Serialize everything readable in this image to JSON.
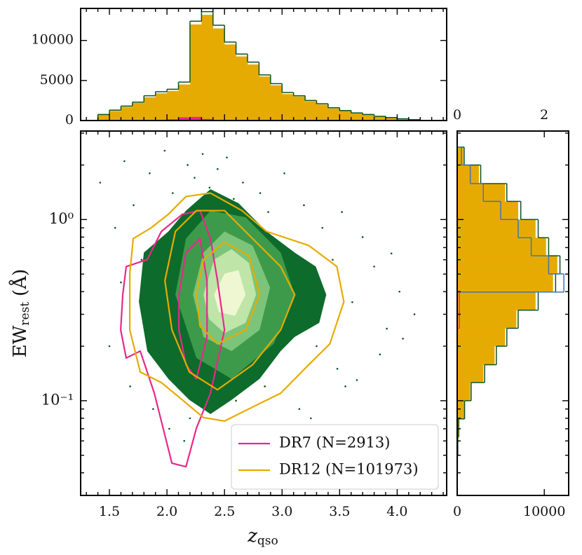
{
  "chart_data": [
    {
      "type": "scatter",
      "xlabel": "z",
      "xlabel_sub": "qso",
      "ylabel": "EW",
      "ylabel_sub": "rest",
      "ylabel_unit": "(Å)",
      "xlim": [
        1.25,
        4.43
      ],
      "ylim": [
        0.03,
        3.08
      ],
      "ylog": true,
      "xticks": [
        1.5,
        {
          "value": 2,
          "label": "2.0"
        },
        2.5,
        {
          "value": 3,
          "label": "3.0"
        },
        3.5,
        {
          "value": 4,
          "label": "4.0"
        }
      ],
      "xminor": [
        1.3,
        1.4,
        1.6,
        1.7,
        1.8,
        1.9,
        2.1,
        2.2,
        2.3,
        2.4,
        2.6,
        2.7,
        2.8,
        2.9,
        3.1,
        3.2,
        3.3,
        3.4,
        3.6,
        3.7,
        3.8,
        3.9,
        4.1,
        4.2,
        4.3,
        4.4
      ],
      "yticks": [
        {
          "value": 0.1,
          "label": "10⁻¹"
        },
        {
          "value": 1,
          "label": "10⁰"
        }
      ],
      "yminor": [
        0.04,
        0.05,
        0.06,
        0.07,
        0.08,
        0.09,
        0.2,
        0.3,
        0.4,
        0.5,
        0.6,
        0.7,
        0.8,
        0.9,
        2,
        3
      ],
      "points": {
        "color": "#0b5323",
        "x": [
          1.42,
          1.55,
          1.63,
          1.71,
          1.78,
          1.85,
          1.92,
          1.98,
          2.05,
          2.11,
          2.18,
          2.24,
          2.31,
          2.37,
          2.44,
          2.52,
          2.58,
          2.66,
          2.73,
          2.81,
          2.88,
          2.95,
          3.02,
          3.11,
          3.19,
          3.27,
          3.35,
          3.44,
          3.52,
          3.61,
          3.7,
          3.8,
          3.91,
          4.02,
          4.15,
          1.5,
          1.68,
          1.88,
          2.02,
          2.15,
          2.28,
          2.4,
          2.55,
          2.7,
          2.85,
          3.0,
          3.15,
          3.3,
          3.48,
          3.65,
          3.85,
          4.05,
          1.6,
          1.95,
          2.2,
          2.6,
          2.9,
          3.25,
          3.55,
          3.95
        ],
        "y": [
          1.6,
          0.9,
          2.1,
          1.2,
          0.6,
          1.8,
          0.3,
          2.4,
          1.4,
          0.15,
          2.0,
          1.7,
          2.3,
          1.5,
          1.9,
          2.2,
          1.3,
          1.6,
          0.9,
          1.4,
          1.1,
          0.7,
          1.8,
          0.5,
          1.2,
          0.45,
          0.9,
          0.6,
          1.1,
          0.35,
          0.8,
          0.55,
          0.25,
          0.4,
          0.3,
          0.2,
          0.12,
          0.09,
          0.07,
          0.06,
          0.11,
          0.18,
          0.16,
          0.14,
          0.12,
          0.25,
          0.09,
          0.2,
          0.15,
          0.13,
          0.18,
          0.22,
          0.45,
          0.5,
          0.08,
          0.1,
          0.3,
          0.08,
          0.12,
          0.65
        ]
      },
      "density": {
        "colors": [
          "#0d6b2c",
          "#3d9a4a",
          "#7cc47a",
          "#bfe5a8",
          "#eef7d2"
        ],
        "levels": [
          {
            "x": [
              1.756,
              1.799,
              2.012,
              2.165,
              2.378,
              2.622,
              2.866,
              3.11,
              3.293,
              3.384,
              3.323,
              3.11,
              2.988,
              2.805,
              2.561,
              2.378,
              2.195,
              2.012,
              1.829
            ],
            "y": [
              0.352,
              0.657,
              0.859,
              1.12,
              1.47,
              1.23,
              0.859,
              0.657,
              0.55,
              0.385,
              0.269,
              0.225,
              0.188,
              0.132,
              0.101,
              0.0844,
              0.101,
              0.132,
              0.188
            ]
          },
          {
            "x": [
              2.073,
              2.165,
              2.378,
              2.683,
              2.988,
              3.11,
              2.927,
              2.561,
              2.256
            ],
            "y": [
              0.385,
              0.785,
              1.12,
              1.03,
              0.657,
              0.385,
              0.206,
              0.132,
              0.172
            ]
          },
          {
            "x": [
              2.226,
              2.317,
              2.5,
              2.744,
              2.896,
              2.805,
              2.561,
              2.317
            ],
            "y": [
              0.385,
              0.657,
              0.859,
              0.719,
              0.421,
              0.246,
              0.188,
              0.225
            ]
          },
          {
            "x": [
              2.317,
              2.409,
              2.561,
              2.713,
              2.774,
              2.683,
              2.5,
              2.366
            ],
            "y": [
              0.385,
              0.601,
              0.687,
              0.575,
              0.385,
              0.269,
              0.236,
              0.282
            ]
          },
          {
            "x": [
              2.409,
              2.5,
              2.622,
              2.683,
              2.591,
              2.451
            ],
            "y": [
              0.385,
              0.503,
              0.526,
              0.385,
              0.294,
              0.308
            ]
          }
        ]
      },
      "series": [
        {
          "name": "DR7 (N=2913)",
          "color": "#e7298a",
          "contours": [
            {
              "x": [
                1.616,
                1.646,
                1.829,
                1.951,
                2.134,
                2.287,
                2.378,
                2.439,
                2.5,
                2.378,
                2.256,
                2.165,
                2.043,
                1.951,
                1.89,
                1.768,
                1.646,
                1.598
              ],
              "y": [
                0.385,
                0.55,
                0.601,
                0.859,
                1.07,
                1.12,
                0.785,
                0.46,
                0.246,
                0.11,
                0.0706,
                0.0432,
                0.0452,
                0.0772,
                0.11,
                0.188,
                0.172,
                0.246
              ]
            },
            {
              "x": [
                2.104,
                2.165,
                2.287,
                2.348,
                2.348,
                2.256,
                2.165,
                2.104
              ],
              "y": [
                0.385,
                0.657,
                0.785,
                0.46,
                0.225,
                0.132,
                0.158,
                0.246
              ]
            }
          ]
        },
        {
          "name": "DR12 (N=101973)",
          "color": "#e6ab02",
          "contours": [
            {
              "x": [
                1.677,
                1.707,
                1.86,
                2.012,
                2.165,
                2.378,
                2.652,
                2.866,
                3.232,
                3.476,
                3.537,
                3.415,
                3.232,
                2.988,
                2.744,
                2.5,
                2.317,
                2.134,
                1.951,
                1.768,
                1.677
              ],
              "y": [
                0.503,
                0.785,
                0.898,
                1.07,
                1.34,
                1.4,
                1.12,
                0.859,
                0.719,
                0.55,
                0.352,
                0.206,
                0.158,
                0.11,
                0.0923,
                0.0772,
                0.0807,
                0.101,
                0.126,
                0.144,
                0.246
              ]
            },
            {
              "x": [
                1.982,
                2.073,
                2.256,
                2.5,
                2.744,
                2.988,
                3.11,
                2.988,
                2.744,
                2.439,
                2.195,
                2.043
              ],
              "y": [
                0.46,
                0.859,
                1.12,
                1.12,
                0.785,
                0.55,
                0.385,
                0.246,
                0.158,
                0.115,
                0.144,
                0.246
              ]
            },
            {
              "x": [
                2.256,
                2.317,
                2.5,
                2.713,
                2.805,
                2.683,
                2.439,
                2.287
              ],
              "y": [
                0.385,
                0.601,
                0.751,
                0.629,
                0.385,
                0.246,
                0.206,
                0.258
              ]
            }
          ]
        }
      ],
      "legend": "lower right"
    },
    {
      "type": "histogram",
      "xlim": [
        1.25,
        4.43
      ],
      "ylim": [
        0,
        14000
      ],
      "yticks": [
        0,
        5000,
        10000
      ],
      "bins": [
        1.4,
        1.5,
        1.6,
        1.7,
        1.8,
        1.9,
        2.0,
        2.1,
        2.2,
        2.3,
        2.4,
        2.5,
        2.6,
        2.7,
        2.8,
        2.9,
        3.0,
        3.1,
        3.2,
        3.3,
        3.4,
        3.5,
        3.6,
        3.7,
        3.8,
        3.9,
        4.0,
        4.1,
        4.2
      ],
      "series": [
        {
          "color": "#e6ab02",
          "fill": true,
          "values": [
            700,
            1200,
            1700,
            2200,
            2900,
            3400,
            3700,
            4500,
            12000,
            13200,
            11500,
            9500,
            8000,
            7000,
            5500,
            4400,
            3300,
            3000,
            2400,
            2000,
            1500,
            1200,
            900,
            700,
            500,
            350,
            200,
            100
          ]
        },
        {
          "color": "#0b5323",
          "fill": false,
          "values": [
            750,
            1300,
            1800,
            2300,
            3100,
            3600,
            3900,
            4800,
            12400,
            13600,
            11900,
            9800,
            8300,
            7300,
            5700,
            4600,
            3500,
            3100,
            2500,
            2100,
            1600,
            1250,
            950,
            750,
            530,
            370,
            220,
            110
          ]
        },
        {
          "color": "#e7298a",
          "fill": true,
          "values": [
            0,
            0,
            0,
            0,
            0,
            0,
            150,
            400,
            450,
            200,
            0,
            0,
            0,
            0,
            0,
            0,
            0,
            0,
            0,
            0,
            0,
            0,
            0,
            0,
            0,
            0,
            0,
            0
          ]
        }
      ]
    },
    {
      "type": "histogram",
      "orientation": "horizontal",
      "ylim": [
        0.03,
        3.08
      ],
      "ylog": true,
      "xlim": [
        0,
        12800
      ],
      "xticks": [
        0,
        10000
      ],
      "x2lim": [
        0,
        2.56
      ],
      "x2ticks": [
        0,
        2
      ],
      "bins": [
        0.0316,
        0.0398,
        0.0501,
        0.0631,
        0.0794,
        0.1,
        0.126,
        0.158,
        0.2,
        0.251,
        0.316,
        0.398,
        0.501,
        0.631,
        0.794,
        1,
        1.26,
        1.58,
        2,
        2.51
      ],
      "series": [
        {
          "color": "#e6ab02",
          "fill": true,
          "values": [
            0,
            20,
            50,
            150,
            800,
            1500,
            3000,
            4300,
            5500,
            6800,
            9000,
            11000,
            11500,
            10200,
            9000,
            7000,
            5500,
            2500,
            700
          ]
        },
        {
          "color": "#0b5323",
          "fill": false,
          "values": [
            0,
            30,
            70,
            180,
            850,
            1600,
            3150,
            4500,
            5700,
            7000,
            9300,
            11300,
            11800,
            10500,
            9300,
            7300,
            5700,
            2700,
            800
          ]
        },
        {
          "color": "#3a78b5",
          "fill": false,
          "axis": "x2",
          "values": [
            0,
            0,
            0,
            0,
            0,
            0,
            0,
            0,
            0,
            0,
            0,
            2.45,
            2.1,
            1.7,
            1.4,
            1.0,
            0.6,
            0.3,
            0.1
          ]
        },
        {
          "color": "#e7298a",
          "fill": false,
          "axis": "x2",
          "values": [
            0,
            0,
            0,
            0,
            0,
            0,
            0,
            0,
            0,
            0.05,
            0.05,
            0,
            0,
            0,
            0,
            0,
            0,
            0,
            0
          ]
        }
      ]
    }
  ]
}
